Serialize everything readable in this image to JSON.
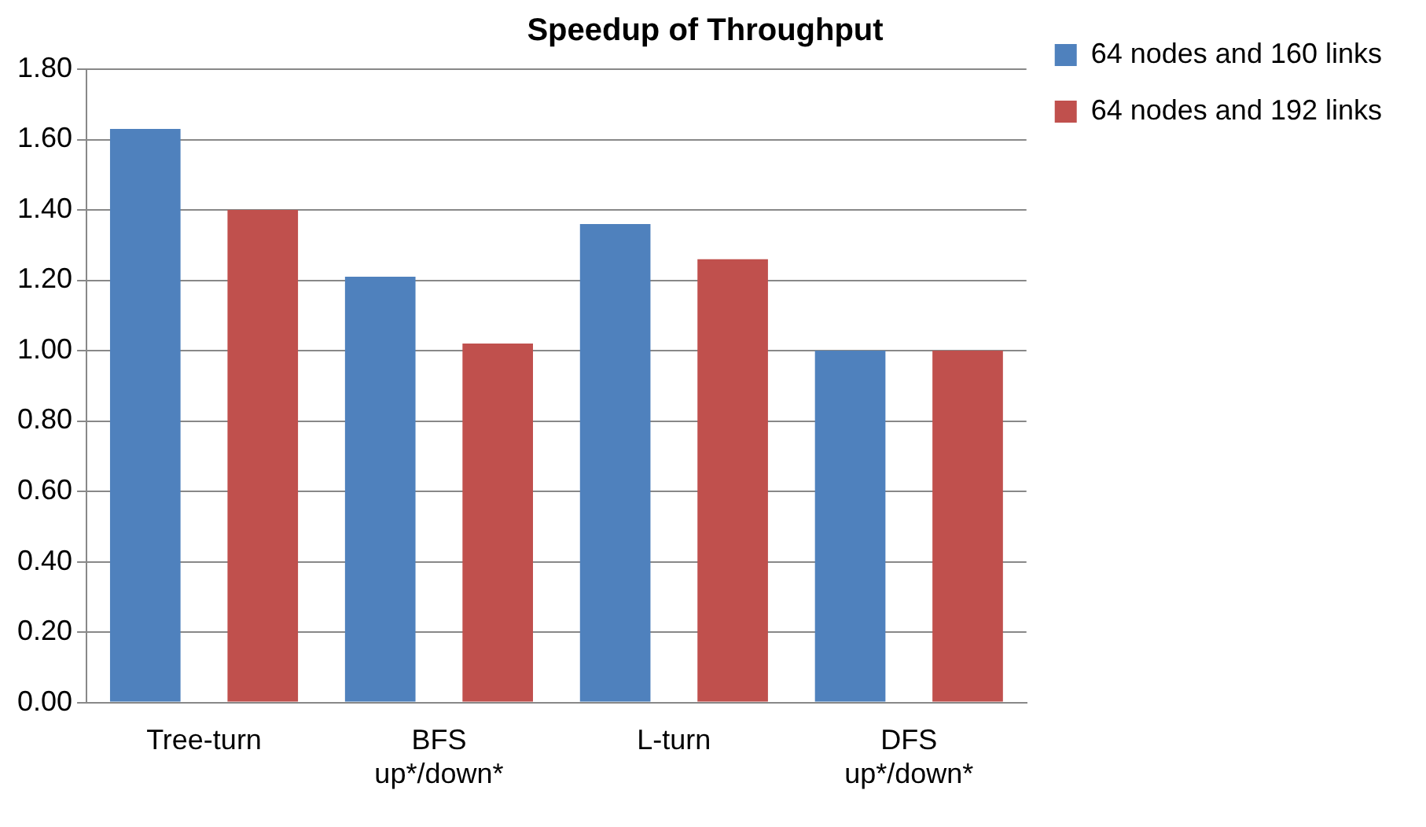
{
  "chart_data": {
    "type": "bar",
    "title": "Speedup of Throughput",
    "categories": [
      "Tree-turn",
      "BFS up*/down*",
      "L-turn",
      "DFS up*/down*"
    ],
    "series": [
      {
        "name": "64 nodes and 160 links",
        "color": "#4f81bd",
        "values": [
          1.63,
          1.21,
          1.36,
          1.0
        ]
      },
      {
        "name": "64 nodes and 192 links",
        "color": "#c0504d",
        "values": [
          1.4,
          1.02,
          1.26,
          1.0
        ]
      }
    ],
    "ylim": [
      0,
      1.8
    ],
    "yticks": [
      {
        "value": 0,
        "label": "0.00"
      },
      {
        "value": 0.2,
        "label": "0.20"
      },
      {
        "value": 0.4,
        "label": "0.40"
      },
      {
        "value": 0.6,
        "label": "0.60"
      },
      {
        "value": 0.8,
        "label": "0.80"
      },
      {
        "value": 1.0,
        "label": "1.00"
      },
      {
        "value": 1.2,
        "label": "1.20"
      },
      {
        "value": 1.4,
        "label": "1.40"
      },
      {
        "value": 1.6,
        "label": "1.60"
      },
      {
        "value": 1.8,
        "label": "1.80"
      }
    ],
    "grid": "y",
    "legend": "right"
  }
}
